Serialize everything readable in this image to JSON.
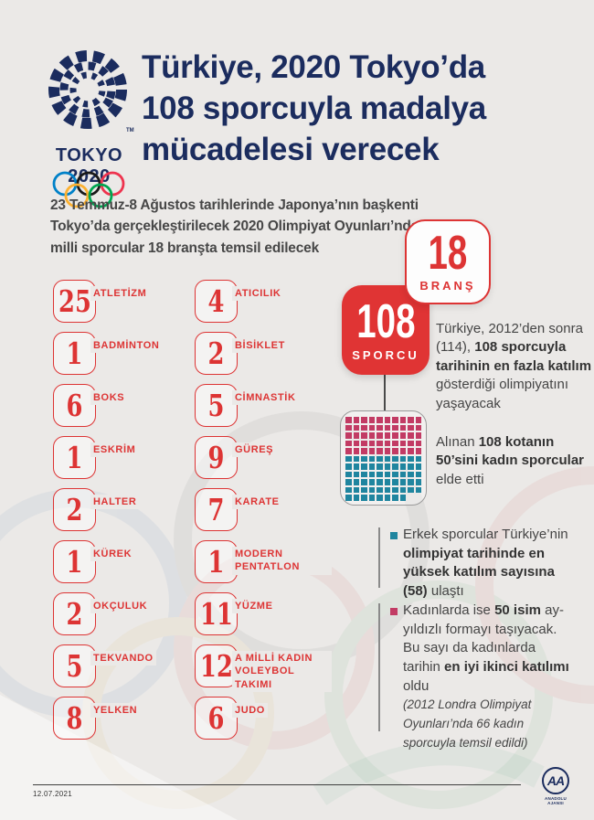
{
  "header": {
    "logo": {
      "emblem_icon": "tokyo-2020-checkered-emblem",
      "trademark": "TM",
      "wordmark": "TOKYO 2020",
      "olympic_ring_colors": [
        "#0081c8",
        "#1a1a1a",
        "#ee334e",
        "#fcb131",
        "#00a651"
      ]
    },
    "title_lines": [
      "Türkiye, 2020 Tokyo’da",
      "108 sporcuyla madalya",
      "mücadelesi verecek"
    ]
  },
  "intro_lines": [
    "23 Temmuz-8 Ağustos tarihlerinde Japonya’nın başkenti",
    "Tokyo’da gerçekleştirilecek 2020 Olimpiyat Oyunları’nda",
    "milli sporcular 18 branşta temsil edilecek"
  ],
  "stat_badges": {
    "brans": {
      "value": "18",
      "label": "BRANŞ"
    },
    "sporcu": {
      "value": "108",
      "label": "SPORCU"
    }
  },
  "facts": {
    "participation": [
      {
        "t": "Türkiye, 2012’den sonra (114), "
      },
      {
        "t": "108 sporcuyla tarihinin en fazla katılım",
        "b": true
      },
      {
        "t": " gösterdiği olimpiyatını yaşayacak"
      }
    ],
    "quota": [
      {
        "t": "Alınan "
      },
      {
        "t": "108 kotanın 50’sini kadın sporcular",
        "b": true
      },
      {
        "t": " elde etti"
      }
    ],
    "men": [
      {
        "t": "Erkek sporcular Türkiye’nin "
      },
      {
        "t": "olimpiyat tarihinde en yüksek katılım sayısına (58)",
        "b": true
      },
      {
        "t": " ulaştı"
      }
    ],
    "women": [
      {
        "t": "Kadınlarda ise "
      },
      {
        "t": "50 isim",
        "b": true
      },
      {
        "t": " ay-yıldızlı formayı taşıyacak. Bu sayı da kadınlarda tarihin "
      },
      {
        "t": "en iyi ikinci katılımı",
        "b": true
      },
      {
        "t": " oldu"
      },
      {
        "t": "(2012 Londra Olimpiyat Oyunları’nda 66 kadın sporcuyla temsil edildi)",
        "i": true,
        "br": true
      }
    ]
  },
  "quota_matrix": {
    "total": 108,
    "female_count": 50,
    "male_count": 58,
    "columns": 10,
    "female_color": "#c23b64",
    "male_color": "#1f859f"
  },
  "sports": {
    "left": [
      {
        "count": "25",
        "name": "ATLETİZM"
      },
      {
        "count": "1",
        "name": "BADMİNTON"
      },
      {
        "count": "6",
        "name": "BOKS"
      },
      {
        "count": "1",
        "name": "ESKRİM"
      },
      {
        "count": "2",
        "name": "HALTER"
      },
      {
        "count": "1",
        "name": "KÜREK"
      },
      {
        "count": "2",
        "name": "OKÇULUK"
      },
      {
        "count": "5",
        "name": "TEKVANDO"
      },
      {
        "count": "8",
        "name": "YELKEN"
      }
    ],
    "right": [
      {
        "count": "4",
        "name": "ATICILIK"
      },
      {
        "count": "2",
        "name": "BİSİKLET"
      },
      {
        "count": "5",
        "name": "CİMNASTİK"
      },
      {
        "count": "9",
        "name": "GÜREŞ"
      },
      {
        "count": "7",
        "name": "KARATE"
      },
      {
        "count": "1",
        "name": "MODERN PENTATLON"
      },
      {
        "count": "11",
        "name": "YÜZME"
      },
      {
        "count": "12",
        "name": "A MİLLİ KADIN VOLEYBOL TAKIMI"
      },
      {
        "count": "6",
        "name": "JUDO"
      }
    ]
  },
  "footer": {
    "date": "12.07.2021",
    "agency_initials": "AA",
    "agency_name": "ANADOLU AJANSI"
  },
  "colors": {
    "background": "#ebe9e7",
    "navy": "#1b2c5e",
    "accent_red": "#dd3434",
    "female_pink": "#c23b64",
    "male_teal": "#1f859f"
  }
}
